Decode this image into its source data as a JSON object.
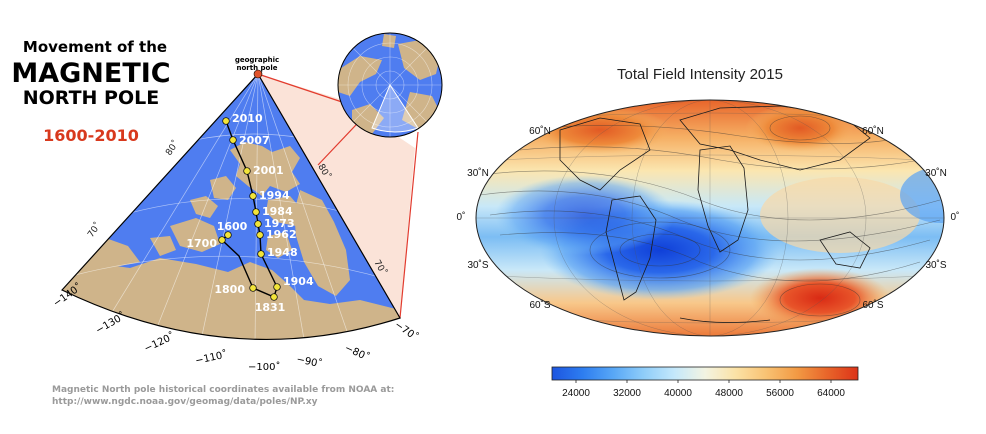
{
  "left_panel": {
    "title_line1": "Movement of the",
    "title_line2": "MAGNETIC",
    "title_line3": "NORTH POLE",
    "year_range": "1600-2010",
    "pole_label_line1": "geographic",
    "pole_label_line2": "north pole",
    "pole_positions": [
      {
        "year": "2010"
      },
      {
        "year": "2007"
      },
      {
        "year": "2001"
      },
      {
        "year": "1994"
      },
      {
        "year": "1984"
      },
      {
        "year": "1973"
      },
      {
        "year": "1962"
      },
      {
        "year": "1948"
      },
      {
        "year": "1904"
      },
      {
        "year": "1831"
      },
      {
        "year": "1800"
      },
      {
        "year": "1700"
      },
      {
        "year": "1600"
      }
    ],
    "longitude_labels": [
      "−140˚",
      "−130˚",
      "−120˚",
      "−110˚",
      "−100˚",
      "−90˚",
      "−80˚",
      "−70˚"
    ],
    "latitude_labels_left": [
      "80˚",
      "70˚"
    ],
    "latitude_labels_right": [
      "80˚",
      "70˚"
    ],
    "source_line1": "Magnetic North pole historical coordinates available from NOAA at:",
    "source_line2": "http://www.ngdc.noaa.gov/geomag/data/poles/NP.xy",
    "colors": {
      "ocean": "#4f7df0",
      "land": "#cfb48a",
      "path": "#000000",
      "marker": "#f2e43a",
      "wedge": "#fbe3d8",
      "link": "#e23b2e"
    }
  },
  "right_panel": {
    "title": "Total Field Intensity 2015",
    "lat_labels_left": [
      "60˚N",
      "30˚N",
      "0˚",
      "30˚S",
      "60˚S"
    ],
    "lat_labels_right": [
      "60˚N",
      "30˚N",
      "0˚",
      "30˚S",
      "60˚S"
    ],
    "colorbar": {
      "ticks": [
        "24000",
        "32000",
        "40000",
        "48000",
        "56000",
        "64000"
      ],
      "colors": [
        "#1d55e0",
        "#2d7df0",
        "#58a7f6",
        "#8fcdf9",
        "#c4e8fb",
        "#f3f4e2",
        "#fbe2a6",
        "#f8c273",
        "#f29a44",
        "#e8652a",
        "#dc3318"
      ]
    }
  }
}
